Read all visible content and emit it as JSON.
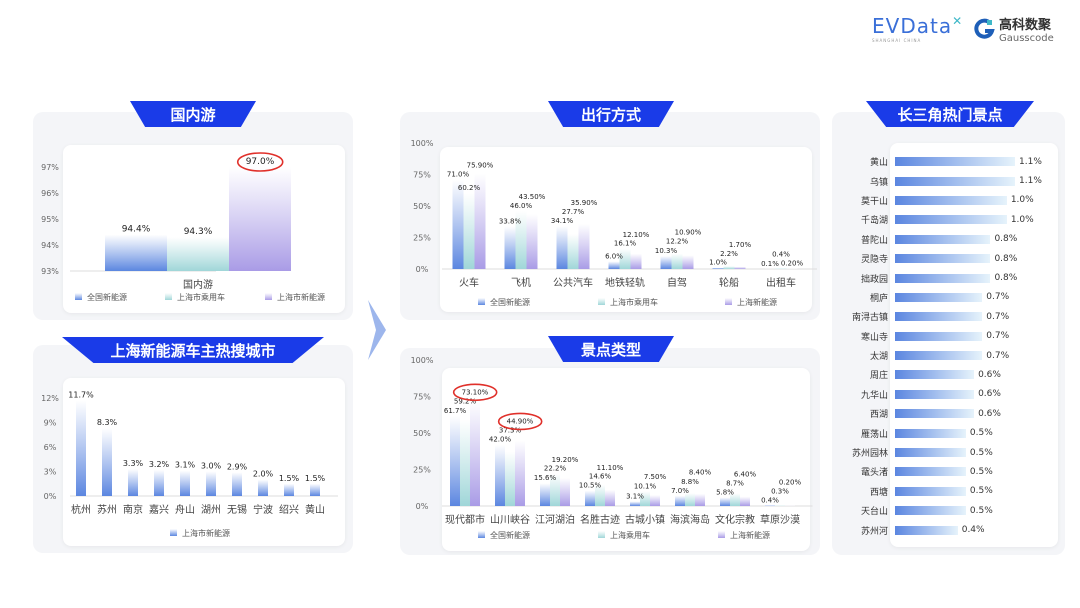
{
  "logos": {
    "evdata": "EVData",
    "evdata_sub": "SHANGHAI CHINA",
    "gauss_cn": "高科数聚",
    "gauss_en": "Gausscode"
  },
  "colors": {
    "badge": "#1a3be8",
    "series1": "#5b86e0",
    "series2": "#9fd6d8",
    "series3": "#a99be6",
    "highlight": "#e0302a"
  },
  "sections": {
    "domestic": "国内游",
    "cities": "上海新能源车主热搜城市",
    "travel": "出行方式",
    "scenic": "景点类型",
    "ranking": "长三角热门景点"
  },
  "chart_data": [
    {
      "id": "domestic",
      "type": "bar",
      "categories": [
        "国内游"
      ],
      "ylim": [
        93,
        97
      ],
      "yticks": [
        "93%",
        "94%",
        "95%",
        "96%",
        "97%"
      ],
      "series": [
        {
          "name": "全国新能源",
          "values": [
            94.4
          ],
          "labels": [
            "94.4%"
          ]
        },
        {
          "name": "上海市乘用车",
          "values": [
            94.3
          ],
          "labels": [
            "94.3%"
          ]
        },
        {
          "name": "上海市新能源",
          "values": [
            97.0
          ],
          "labels": [
            "97.0%"
          ]
        }
      ],
      "highlighted": [
        "97.0%"
      ],
      "legend": "bottom"
    },
    {
      "id": "cities",
      "type": "bar",
      "categories": [
        "杭州",
        "苏州",
        "南京",
        "嘉兴",
        "舟山",
        "湖州",
        "无锡",
        "宁波",
        "绍兴",
        "黄山"
      ],
      "ylim": [
        0,
        12
      ],
      "yticks": [
        "0%",
        "3%",
        "6%",
        "9%",
        "12%"
      ],
      "series": [
        {
          "name": "上海市新能源",
          "values": [
            11.7,
            8.3,
            3.3,
            3.2,
            3.1,
            3.0,
            2.9,
            2.0,
            1.5,
            1.5
          ],
          "labels": [
            "11.7%",
            "8.3%",
            "3.3%",
            "3.2%",
            "3.1%",
            "3.0%",
            "2.9%",
            "2.0%",
            "1.5%",
            "1.5%"
          ]
        }
      ],
      "legend": "bottom"
    },
    {
      "id": "travel",
      "type": "bar",
      "categories": [
        "火车",
        "飞机",
        "公共汽车",
        "地铁轻轨",
        "自驾",
        "轮船",
        "出租车"
      ],
      "ylim": [
        0,
        100
      ],
      "yticks": [
        "0%",
        "25%",
        "50%",
        "75%",
        "100%"
      ],
      "series": [
        {
          "name": "全国新能源",
          "values": [
            71.0,
            33.8,
            34.1,
            6.0,
            10.3,
            1.0,
            0.1
          ],
          "labels": [
            "71.0%",
            "33.8%",
            "34.1%",
            "6.0%",
            "10.3%",
            "1.0%",
            "0.1%"
          ]
        },
        {
          "name": "上海市乘用车",
          "values": [
            60.2,
            46.0,
            27.7,
            16.1,
            12.2,
            2.2,
            0.4
          ],
          "labels": [
            "60.2%",
            "46.0%",
            "27.7%",
            "16.1%",
            "12.2%",
            "2.2%",
            "0.4%"
          ]
        },
        {
          "name": "上海新能源",
          "values": [
            75.9,
            43.5,
            35.9,
            12.1,
            10.9,
            1.7,
            0.2
          ],
          "labels": [
            "75.90%",
            "43.50%",
            "35.90%",
            "12.10%",
            "10.90%",
            "1.70%",
            "0.20%"
          ]
        }
      ],
      "legend": "bottom"
    },
    {
      "id": "scenic",
      "type": "bar",
      "categories": [
        "现代都市",
        "山川峡谷",
        "江河湖泊",
        "名胜古迹",
        "古城小镇",
        "海滨海岛",
        "文化宗教",
        "草原沙漠"
      ],
      "ylim": [
        0,
        100
      ],
      "yticks": [
        "0%",
        "25%",
        "50%",
        "75%",
        "100%"
      ],
      "series": [
        {
          "name": "全国新能源",
          "values": [
            61.7,
            42.0,
            15.6,
            10.5,
            3.1,
            7.0,
            5.8,
            0.4
          ],
          "labels": [
            "61.7%",
            "42.0%",
            "15.6%",
            "10.5%",
            "3.1%",
            "7.0%",
            "5.8%",
            "0.4%"
          ]
        },
        {
          "name": "上海乘用车",
          "values": [
            59.2,
            37.3,
            22.2,
            14.6,
            10.1,
            8.8,
            8.7,
            0.3
          ],
          "labels": [
            "59.2%",
            "37.3%",
            "22.2%",
            "14.6%",
            "10.1%",
            "8.8%",
            "8.7%",
            "0.3%"
          ]
        },
        {
          "name": "上海新能源",
          "values": [
            73.1,
            44.9,
            19.2,
            11.1,
            7.5,
            8.4,
            6.4,
            0.2
          ],
          "labels": [
            "73.10%",
            "44.90%",
            "19.20%",
            "11.10%",
            "7.50%",
            "8.40%",
            "6.40%",
            "0.20%"
          ]
        }
      ],
      "highlighted": [
        "73.10%",
        "44.90%"
      ],
      "legend": "bottom"
    },
    {
      "id": "ranking",
      "type": "bar",
      "orientation": "horizontal",
      "categories": [
        "黄山",
        "乌镇",
        "莫干山",
        "千岛湖",
        "普陀山",
        "灵隐寺",
        "拙政园",
        "桐庐",
        "南浔古镇",
        "寒山寺",
        "太湖",
        "周庄",
        "九华山",
        "西湖",
        "雁荡山",
        "苏州园林",
        "鼋头渚",
        "西塘",
        "天台山",
        "苏州河"
      ],
      "values": [
        1.1,
        1.1,
        1.0,
        1.0,
        0.8,
        0.8,
        0.8,
        0.7,
        0.7,
        0.7,
        0.7,
        0.6,
        0.6,
        0.6,
        0.5,
        0.5,
        0.5,
        0.5,
        0.5,
        0.4
      ],
      "labels": [
        "1.1%",
        "1.1%",
        "1.0%",
        "1.0%",
        "0.8%",
        "0.8%",
        "0.8%",
        "0.7%",
        "0.7%",
        "0.7%",
        "0.7%",
        "0.6%",
        "0.6%",
        "0.6%",
        "0.5%",
        "0.5%",
        "0.5%",
        "0.5%",
        "0.5%",
        "0.4%"
      ]
    }
  ]
}
